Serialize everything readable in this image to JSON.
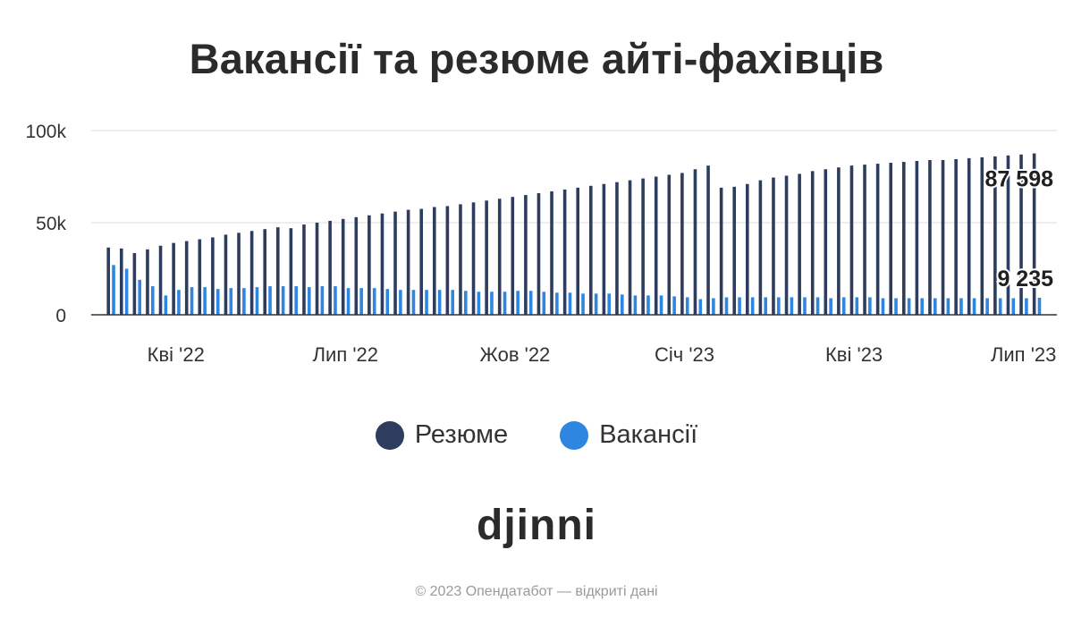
{
  "colors": {
    "resume": "#2e3d5e",
    "vacancies": "#2f86e0",
    "text": "#2b2b2b",
    "grid": "#e3e3e3"
  },
  "chart_data": {
    "type": "bar",
    "title": "Вакансії та резюме айті-фахівців",
    "xlabel": "",
    "ylabel": "",
    "ylim": [
      0,
      100000
    ],
    "y_ticks": [
      0,
      50000,
      100000
    ],
    "y_tick_labels": [
      "0",
      "50k",
      "100k"
    ],
    "x_tick_labels": [
      {
        "label": "Кві '22",
        "week_index": 5
      },
      {
        "label": "Лип '22",
        "week_index": 18
      },
      {
        "label": "Жов '22",
        "week_index": 31
      },
      {
        "label": "Січ '23",
        "week_index": 44
      },
      {
        "label": "Кві '23",
        "week_index": 57
      },
      {
        "label": "Лип '23",
        "week_index": 70
      }
    ],
    "series": [
      {
        "name": "Резюме",
        "values": [
          36500,
          36000,
          33500,
          35500,
          37500,
          39000,
          40000,
          41000,
          42000,
          43500,
          44500,
          45500,
          46500,
          47500,
          47000,
          49000,
          50000,
          51000,
          52000,
          53000,
          54000,
          55000,
          56000,
          57000,
          57500,
          58500,
          59000,
          60000,
          61000,
          62000,
          63000,
          64000,
          65000,
          66000,
          67000,
          68000,
          69000,
          70000,
          71000,
          72000,
          73000,
          74000,
          75000,
          76000,
          77000,
          79000,
          81000,
          69000,
          69500,
          71000,
          73000,
          74500,
          75500,
          76500,
          78000,
          79000,
          80000,
          81000,
          81500,
          82000,
          82500,
          83000,
          83500,
          84000,
          84000,
          84500,
          85000,
          85500,
          86000,
          86500,
          87000,
          87598
        ]
      },
      {
        "name": "Вакансії",
        "values": [
          27000,
          25000,
          19000,
          15500,
          10500,
          13500,
          15000,
          15000,
          14000,
          14500,
          14500,
          15000,
          15500,
          15500,
          15500,
          15000,
          15500,
          15500,
          14500,
          14500,
          14500,
          14000,
          13500,
          13500,
          13500,
          13500,
          13500,
          13000,
          12500,
          12500,
          12500,
          13000,
          13000,
          12500,
          12000,
          12000,
          11500,
          11500,
          11500,
          11000,
          10500,
          10500,
          10500,
          10000,
          9500,
          8500,
          9000,
          9500,
          9500,
          9500,
          9500,
          9500,
          9500,
          9500,
          9500,
          9000,
          9500,
          9500,
          9500,
          9000,
          9000,
          9000,
          9000,
          9000,
          9000,
          9000,
          9000,
          9000,
          9000,
          9000,
          9000,
          9235
        ]
      }
    ],
    "annotations": [
      {
        "series": "Резюме",
        "text": "87 598"
      },
      {
        "series": "Вакансії",
        "text": "9 235"
      }
    ]
  },
  "legend": {
    "items": [
      {
        "label": "Резюме",
        "color": "#2e3d5e"
      },
      {
        "label": "Вакансії",
        "color": "#2f86e0"
      }
    ]
  },
  "logo": {
    "text": "djinni"
  },
  "footer": {
    "text": "© 2023 Опендатабот — відкриті дані"
  }
}
